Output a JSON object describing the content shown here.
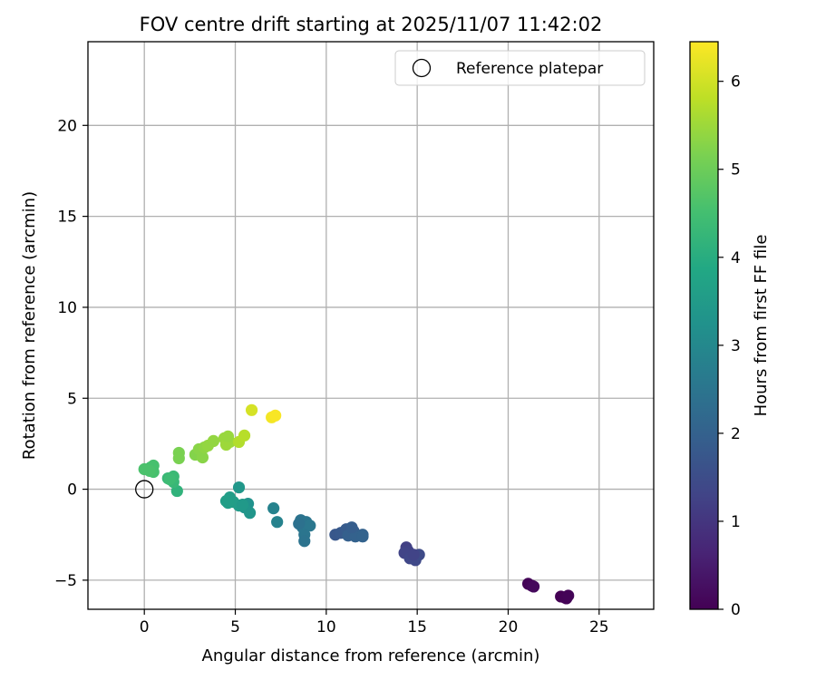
{
  "chart_data": {
    "type": "scatter",
    "title": "FOV centre drift starting at 2025/11/07 11:42:02",
    "xlabel": "Angular distance from reference (arcmin)",
    "ylabel": "Rotation from reference (arcmin)",
    "xlim": [
      -3.1,
      28.0
    ],
    "ylim": [
      -6.6,
      24.6
    ],
    "xticks": [
      0,
      5,
      10,
      15,
      20,
      25
    ],
    "yticks": [
      -5,
      0,
      5,
      10,
      15,
      20
    ],
    "grid": true,
    "legend": {
      "position": "top-right",
      "entries": [
        "Reference platepar"
      ]
    },
    "reference_point": {
      "x": 0,
      "y": 0,
      "label": "Reference platepar"
    },
    "colorbar": {
      "label": "Hours from first FF file",
      "range": [
        0,
        6.45
      ],
      "ticks": [
        0,
        1,
        2,
        3,
        4,
        5,
        6
      ],
      "colormap": "viridis"
    },
    "series": [
      {
        "name": "FOV centre drift",
        "points": [
          {
            "x": 21.1,
            "y": -5.2,
            "c": 0.05
          },
          {
            "x": 21.3,
            "y": -5.3,
            "c": 0.1
          },
          {
            "x": 21.4,
            "y": -5.35,
            "c": 0.15
          },
          {
            "x": 22.9,
            "y": -5.9,
            "c": 0.0
          },
          {
            "x": 23.1,
            "y": -5.95,
            "c": 0.02
          },
          {
            "x": 23.2,
            "y": -6.0,
            "c": 0.04
          },
          {
            "x": 23.3,
            "y": -5.85,
            "c": 0.06
          },
          {
            "x": 14.4,
            "y": -3.2,
            "c": 1.2
          },
          {
            "x": 14.5,
            "y": -3.4,
            "c": 1.25
          },
          {
            "x": 14.3,
            "y": -3.5,
            "c": 1.3
          },
          {
            "x": 14.6,
            "y": -3.8,
            "c": 1.35
          },
          {
            "x": 14.9,
            "y": -3.9,
            "c": 1.4
          },
          {
            "x": 15.1,
            "y": -3.6,
            "c": 1.45
          },
          {
            "x": 14.8,
            "y": -3.6,
            "c": 1.3
          },
          {
            "x": 10.5,
            "y": -2.5,
            "c": 1.75
          },
          {
            "x": 10.8,
            "y": -2.4,
            "c": 1.8
          },
          {
            "x": 11.1,
            "y": -2.2,
            "c": 1.85
          },
          {
            "x": 11.3,
            "y": -2.4,
            "c": 1.85
          },
          {
            "x": 11.5,
            "y": -2.3,
            "c": 1.9
          },
          {
            "x": 11.2,
            "y": -2.55,
            "c": 1.95
          },
          {
            "x": 11.6,
            "y": -2.6,
            "c": 2.0
          },
          {
            "x": 12.0,
            "y": -2.5,
            "c": 2.0
          },
          {
            "x": 12.0,
            "y": -2.6,
            "c": 2.05
          },
          {
            "x": 11.4,
            "y": -2.1,
            "c": 1.9
          },
          {
            "x": 8.6,
            "y": -1.7,
            "c": 2.45
          },
          {
            "x": 8.9,
            "y": -1.8,
            "c": 2.5
          },
          {
            "x": 8.7,
            "y": -2.1,
            "c": 2.55
          },
          {
            "x": 9.1,
            "y": -2.0,
            "c": 2.55
          },
          {
            "x": 8.8,
            "y": -2.5,
            "c": 2.5
          },
          {
            "x": 8.8,
            "y": -2.85,
            "c": 2.45
          },
          {
            "x": 8.5,
            "y": -1.9,
            "c": 2.4
          },
          {
            "x": 7.1,
            "y": -1.05,
            "c": 2.85
          },
          {
            "x": 7.3,
            "y": -1.8,
            "c": 2.85
          },
          {
            "x": 5.7,
            "y": -0.8,
            "c": 3.25
          },
          {
            "x": 5.5,
            "y": -1.0,
            "c": 3.3
          },
          {
            "x": 5.8,
            "y": -1.3,
            "c": 3.35
          },
          {
            "x": 5.2,
            "y": 0.1,
            "c": 3.4
          },
          {
            "x": 5.2,
            "y": -0.9,
            "c": 3.5
          },
          {
            "x": 4.9,
            "y": -0.7,
            "c": 3.55
          },
          {
            "x": 4.7,
            "y": -0.45,
            "c": 3.55
          },
          {
            "x": 4.5,
            "y": -0.65,
            "c": 3.6
          },
          {
            "x": 4.6,
            "y": -0.75,
            "c": 3.6
          },
          {
            "x": 5.4,
            "y": -0.85,
            "c": 3.45
          },
          {
            "x": 1.8,
            "y": -0.1,
            "c": 4.15
          },
          {
            "x": 1.6,
            "y": 0.4,
            "c": 4.3
          },
          {
            "x": 1.3,
            "y": 0.6,
            "c": 4.3
          },
          {
            "x": 1.6,
            "y": 0.7,
            "c": 4.35
          },
          {
            "x": 1.4,
            "y": 0.55,
            "c": 4.4
          },
          {
            "x": 0.2,
            "y": 1.1,
            "c": 4.45
          },
          {
            "x": 0.35,
            "y": 1.2,
            "c": 4.5
          },
          {
            "x": 0.5,
            "y": 1.3,
            "c": 4.55
          },
          {
            "x": 0.5,
            "y": 0.95,
            "c": 4.55
          },
          {
            "x": 0.0,
            "y": 1.1,
            "c": 4.6
          },
          {
            "x": 0.3,
            "y": 1.0,
            "c": 4.6
          },
          {
            "x": 1.9,
            "y": 2.0,
            "c": 5.15
          },
          {
            "x": 1.9,
            "y": 1.7,
            "c": 5.15
          },
          {
            "x": 2.8,
            "y": 1.9,
            "c": 5.25
          },
          {
            "x": 3.0,
            "y": 2.2,
            "c": 5.3
          },
          {
            "x": 3.2,
            "y": 1.75,
            "c": 5.3
          },
          {
            "x": 3.3,
            "y": 2.3,
            "c": 5.35
          },
          {
            "x": 3.5,
            "y": 2.4,
            "c": 5.4
          },
          {
            "x": 3.8,
            "y": 2.65,
            "c": 5.4
          },
          {
            "x": 4.4,
            "y": 2.8,
            "c": 5.45
          },
          {
            "x": 4.5,
            "y": 2.45,
            "c": 5.5
          },
          {
            "x": 4.7,
            "y": 2.6,
            "c": 5.5
          },
          {
            "x": 4.6,
            "y": 2.9,
            "c": 5.45
          },
          {
            "x": 5.2,
            "y": 2.6,
            "c": 5.7
          },
          {
            "x": 5.5,
            "y": 2.95,
            "c": 5.75
          },
          {
            "x": 5.9,
            "y": 4.35,
            "c": 6.05
          },
          {
            "x": 7.0,
            "y": 3.95,
            "c": 6.35
          },
          {
            "x": 7.2,
            "y": 4.05,
            "c": 6.4
          }
        ]
      }
    ]
  }
}
